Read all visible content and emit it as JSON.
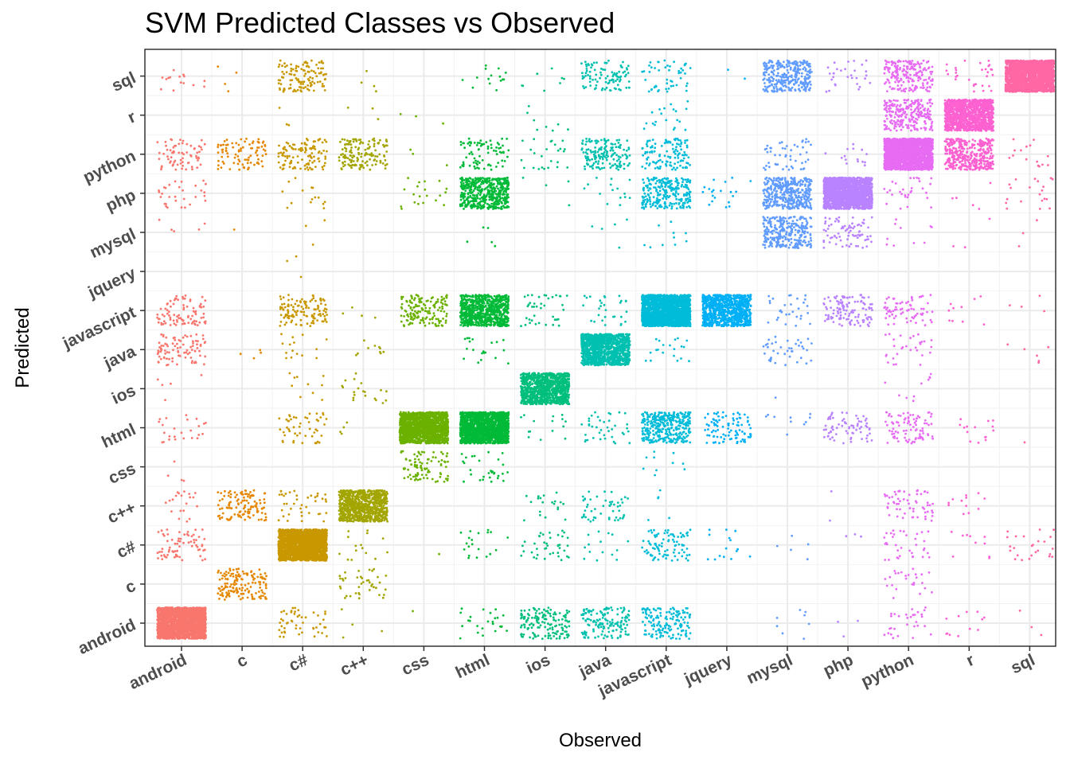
{
  "chart_data": {
    "type": "scatter",
    "subtype": "jittered confusion matrix",
    "title": "SVM Predicted Classes vs Observed",
    "xlabel": "Observed",
    "ylabel": "Predicted",
    "categories": [
      "android",
      "c",
      "c#",
      "c++",
      "css",
      "html",
      "ios",
      "java",
      "javascript",
      "jquery",
      "mysql",
      "php",
      "python",
      "r",
      "sql"
    ],
    "grid": true,
    "legend": "none",
    "colors": {
      "android": "#F8766D",
      "c": "#E58700",
      "c#": "#C99800",
      "c++": "#A3A500",
      "css": "#6BB100",
      "html": "#00BA38",
      "ios": "#00BF7D",
      "java": "#00C0AF",
      "javascript": "#00BCD8",
      "jquery": "#00B0F6",
      "mysql": "#619CFF",
      "php": "#B983FF",
      "python": "#E76BF3",
      "r": "#FD61D1",
      "sql": "#FF67A4"
    },
    "cells": [
      {
        "observed": "android",
        "predicted": "android",
        "count": 2000
      },
      {
        "observed": "android",
        "predicted": "c#",
        "count": 70
      },
      {
        "observed": "android",
        "predicted": "c++",
        "count": 20
      },
      {
        "observed": "android",
        "predicted": "css",
        "count": 4
      },
      {
        "observed": "android",
        "predicted": "html",
        "count": 25
      },
      {
        "observed": "android",
        "predicted": "ios",
        "count": 5
      },
      {
        "observed": "android",
        "predicted": "java",
        "count": 90
      },
      {
        "observed": "android",
        "predicted": "javascript",
        "count": 90
      },
      {
        "observed": "android",
        "predicted": "mysql",
        "count": 5
      },
      {
        "observed": "android",
        "predicted": "php",
        "count": 30
      },
      {
        "observed": "android",
        "predicted": "python",
        "count": 70
      },
      {
        "observed": "android",
        "predicted": "sql",
        "count": 15
      },
      {
        "observed": "c",
        "predicted": "c",
        "count": 150
      },
      {
        "observed": "c",
        "predicted": "c++",
        "count": 120
      },
      {
        "observed": "c",
        "predicted": "java",
        "count": 4
      },
      {
        "observed": "c",
        "predicted": "python",
        "count": 90
      },
      {
        "observed": "c",
        "predicted": "sql",
        "count": 4
      },
      {
        "observed": "c",
        "predicted": "mysql",
        "count": 1
      },
      {
        "observed": "c#",
        "predicted": "c#",
        "count": 2000
      },
      {
        "observed": "c#",
        "predicted": "c++",
        "count": 40
      },
      {
        "observed": "c#",
        "predicted": "html",
        "count": 50
      },
      {
        "observed": "c#",
        "predicted": "ios",
        "count": 10
      },
      {
        "observed": "c#",
        "predicted": "java",
        "count": 15
      },
      {
        "observed": "c#",
        "predicted": "javascript",
        "count": 120
      },
      {
        "observed": "c#",
        "predicted": "android",
        "count": 50
      },
      {
        "observed": "c#",
        "predicted": "python",
        "count": 120
      },
      {
        "observed": "c#",
        "predicted": "sql",
        "count": 120
      },
      {
        "observed": "c#",
        "predicted": "php",
        "count": 15
      },
      {
        "observed": "c#",
        "predicted": "mysql",
        "count": 3
      },
      {
        "observed": "c#",
        "predicted": "jquery",
        "count": 3
      },
      {
        "observed": "c#",
        "predicted": "r",
        "count": 3
      },
      {
        "observed": "c++",
        "predicted": "c++",
        "count": 900
      },
      {
        "observed": "c++",
        "predicted": "c",
        "count": 40
      },
      {
        "observed": "c++",
        "predicted": "c#",
        "count": 15
      },
      {
        "observed": "c++",
        "predicted": "python",
        "count": 150
      },
      {
        "observed": "c++",
        "predicted": "ios",
        "count": 20
      },
      {
        "observed": "c++",
        "predicted": "java",
        "count": 10
      },
      {
        "observed": "c++",
        "predicted": "html",
        "count": 4
      },
      {
        "observed": "c++",
        "predicted": "javascript",
        "count": 4
      },
      {
        "observed": "c++",
        "predicted": "android",
        "count": 4
      },
      {
        "observed": "c++",
        "predicted": "sql",
        "count": 4
      },
      {
        "observed": "c++",
        "predicted": "r",
        "count": 3
      },
      {
        "observed": "css",
        "predicted": "html",
        "count": 1500
      },
      {
        "observed": "css",
        "predicted": "javascript",
        "count": 150
      },
      {
        "observed": "css",
        "predicted": "css",
        "count": 90
      },
      {
        "observed": "css",
        "predicted": "php",
        "count": 20
      },
      {
        "observed": "css",
        "predicted": "r",
        "count": 3
      },
      {
        "observed": "css",
        "predicted": "python",
        "count": 3
      },
      {
        "observed": "css",
        "predicted": "c#",
        "count": 1
      },
      {
        "observed": "css",
        "predicted": "android",
        "count": 1
      },
      {
        "observed": "html",
        "predicted": "html",
        "count": 1600
      },
      {
        "observed": "html",
        "predicted": "javascript",
        "count": 800
      },
      {
        "observed": "html",
        "predicted": "php",
        "count": 500
      },
      {
        "observed": "html",
        "predicted": "python",
        "count": 80
      },
      {
        "observed": "html",
        "predicted": "css",
        "count": 30
      },
      {
        "observed": "html",
        "predicted": "java",
        "count": 20
      },
      {
        "observed": "html",
        "predicted": "c#",
        "count": 20
      },
      {
        "observed": "html",
        "predicted": "sql",
        "count": 15
      },
      {
        "observed": "html",
        "predicted": "android",
        "count": 25
      },
      {
        "observed": "html",
        "predicted": "mysql",
        "count": 5
      },
      {
        "observed": "ios",
        "predicted": "ios",
        "count": 1000
      },
      {
        "observed": "ios",
        "predicted": "android",
        "count": 150
      },
      {
        "observed": "ios",
        "predicted": "c#",
        "count": 40
      },
      {
        "observed": "ios",
        "predicted": "c++",
        "count": 20
      },
      {
        "observed": "ios",
        "predicted": "javascript",
        "count": 40
      },
      {
        "observed": "ios",
        "predicted": "python",
        "count": 25
      },
      {
        "observed": "ios",
        "predicted": "html",
        "count": 15
      },
      {
        "observed": "ios",
        "predicted": "r",
        "count": 8
      },
      {
        "observed": "ios",
        "predicted": "sql",
        "count": 8
      },
      {
        "observed": "ios",
        "predicted": "php",
        "count": 4
      },
      {
        "observed": "java",
        "predicted": "java",
        "count": 1200
      },
      {
        "observed": "java",
        "predicted": "android",
        "count": 150
      },
      {
        "observed": "java",
        "predicted": "python",
        "count": 160
      },
      {
        "observed": "java",
        "predicted": "sql",
        "count": 100
      },
      {
        "observed": "java",
        "predicted": "c++",
        "count": 50
      },
      {
        "observed": "java",
        "predicted": "html",
        "count": 40
      },
      {
        "observed": "java",
        "predicted": "javascript",
        "count": 30
      },
      {
        "observed": "java",
        "predicted": "c#",
        "count": 15
      },
      {
        "observed": "java",
        "predicted": "php",
        "count": 15
      },
      {
        "observed": "java",
        "predicted": "mysql",
        "count": 5
      },
      {
        "observed": "javascript",
        "predicted": "javascript",
        "count": 2000
      },
      {
        "observed": "javascript",
        "predicted": "html",
        "count": 350
      },
      {
        "observed": "javascript",
        "predicted": "php",
        "count": 250
      },
      {
        "observed": "javascript",
        "predicted": "android",
        "count": 150
      },
      {
        "observed": "javascript",
        "predicted": "python",
        "count": 120
      },
      {
        "observed": "javascript",
        "predicted": "c#",
        "count": 90
      },
      {
        "observed": "javascript",
        "predicted": "sql",
        "count": 50
      },
      {
        "observed": "javascript",
        "predicted": "java",
        "count": 20
      },
      {
        "observed": "javascript",
        "predicted": "r",
        "count": 20
      },
      {
        "observed": "javascript",
        "predicted": "css",
        "count": 10
      },
      {
        "observed": "javascript",
        "predicted": "mysql",
        "count": 10
      },
      {
        "observed": "javascript",
        "predicted": "c++",
        "count": 5
      },
      {
        "observed": "jquery",
        "predicted": "javascript",
        "count": 900
      },
      {
        "observed": "jquery",
        "predicted": "html",
        "count": 100
      },
      {
        "observed": "jquery",
        "predicted": "php",
        "count": 20
      },
      {
        "observed": "jquery",
        "predicted": "c#",
        "count": 15
      },
      {
        "observed": "jquery",
        "predicted": "sql",
        "count": 2
      },
      {
        "observed": "mysql",
        "predicted": "php",
        "count": 400
      },
      {
        "observed": "mysql",
        "predicted": "mysql",
        "count": 300
      },
      {
        "observed": "mysql",
        "predicted": "sql",
        "count": 300
      },
      {
        "observed": "mysql",
        "predicted": "python",
        "count": 50
      },
      {
        "observed": "mysql",
        "predicted": "java",
        "count": 40
      },
      {
        "observed": "mysql",
        "predicted": "javascript",
        "count": 30
      },
      {
        "observed": "mysql",
        "predicted": "html",
        "count": 10
      },
      {
        "observed": "mysql",
        "predicted": "c#",
        "count": 5
      },
      {
        "observed": "mysql",
        "predicted": "android",
        "count": 8
      },
      {
        "observed": "mysql",
        "predicted": "ios",
        "count": 1
      },
      {
        "observed": "php",
        "predicted": "php",
        "count": 2000
      },
      {
        "observed": "php",
        "predicted": "javascript",
        "count": 120
      },
      {
        "observed": "php",
        "predicted": "mysql",
        "count": 80
      },
      {
        "observed": "php",
        "predicted": "html",
        "count": 70
      },
      {
        "observed": "php",
        "predicted": "sql",
        "count": 30
      },
      {
        "observed": "php",
        "predicted": "python",
        "count": 15
      },
      {
        "observed": "php",
        "predicted": "c#",
        "count": 3
      },
      {
        "observed": "php",
        "predicted": "c++",
        "count": 2
      },
      {
        "observed": "php",
        "predicted": "android",
        "count": 3
      },
      {
        "observed": "python",
        "predicted": "python",
        "count": 2000
      },
      {
        "observed": "python",
        "predicted": "r",
        "count": 250
      },
      {
        "observed": "python",
        "predicted": "sql",
        "count": 200
      },
      {
        "observed": "python",
        "predicted": "html",
        "count": 90
      },
      {
        "observed": "python",
        "predicted": "javascript",
        "count": 70
      },
      {
        "observed": "python",
        "predicted": "c++",
        "count": 60
      },
      {
        "observed": "python",
        "predicted": "c#",
        "count": 35
      },
      {
        "observed": "python",
        "predicted": "java",
        "count": 30
      },
      {
        "observed": "python",
        "predicted": "android",
        "count": 30
      },
      {
        "observed": "python",
        "predicted": "c",
        "count": 25
      },
      {
        "observed": "python",
        "predicted": "php",
        "count": 30
      },
      {
        "observed": "python",
        "predicted": "ios",
        "count": 10
      },
      {
        "observed": "python",
        "predicted": "mysql",
        "count": 10
      },
      {
        "observed": "r",
        "predicted": "r",
        "count": 1200
      },
      {
        "observed": "r",
        "predicted": "python",
        "count": 400
      },
      {
        "observed": "r",
        "predicted": "sql",
        "count": 30
      },
      {
        "observed": "r",
        "predicted": "javascript",
        "count": 10
      },
      {
        "observed": "r",
        "predicted": "html",
        "count": 15
      },
      {
        "observed": "r",
        "predicted": "c++",
        "count": 12
      },
      {
        "observed": "r",
        "predicted": "c#",
        "count": 10
      },
      {
        "observed": "r",
        "predicted": "android",
        "count": 12
      },
      {
        "observed": "r",
        "predicted": "php",
        "count": 5
      },
      {
        "observed": "r",
        "predicted": "mysql",
        "count": 3
      },
      {
        "observed": "sql",
        "predicted": "sql",
        "count": 2000
      },
      {
        "observed": "sql",
        "predicted": "c#",
        "count": 25
      },
      {
        "observed": "sql",
        "predicted": "php",
        "count": 20
      },
      {
        "observed": "sql",
        "predicted": "python",
        "count": 15
      },
      {
        "observed": "sql",
        "predicted": "java",
        "count": 6
      },
      {
        "observed": "sql",
        "predicted": "javascript",
        "count": 4
      },
      {
        "observed": "sql",
        "predicted": "mysql",
        "count": 3
      },
      {
        "observed": "sql",
        "predicted": "android",
        "count": 3
      },
      {
        "observed": "sql",
        "predicted": "html",
        "count": 1
      }
    ]
  }
}
